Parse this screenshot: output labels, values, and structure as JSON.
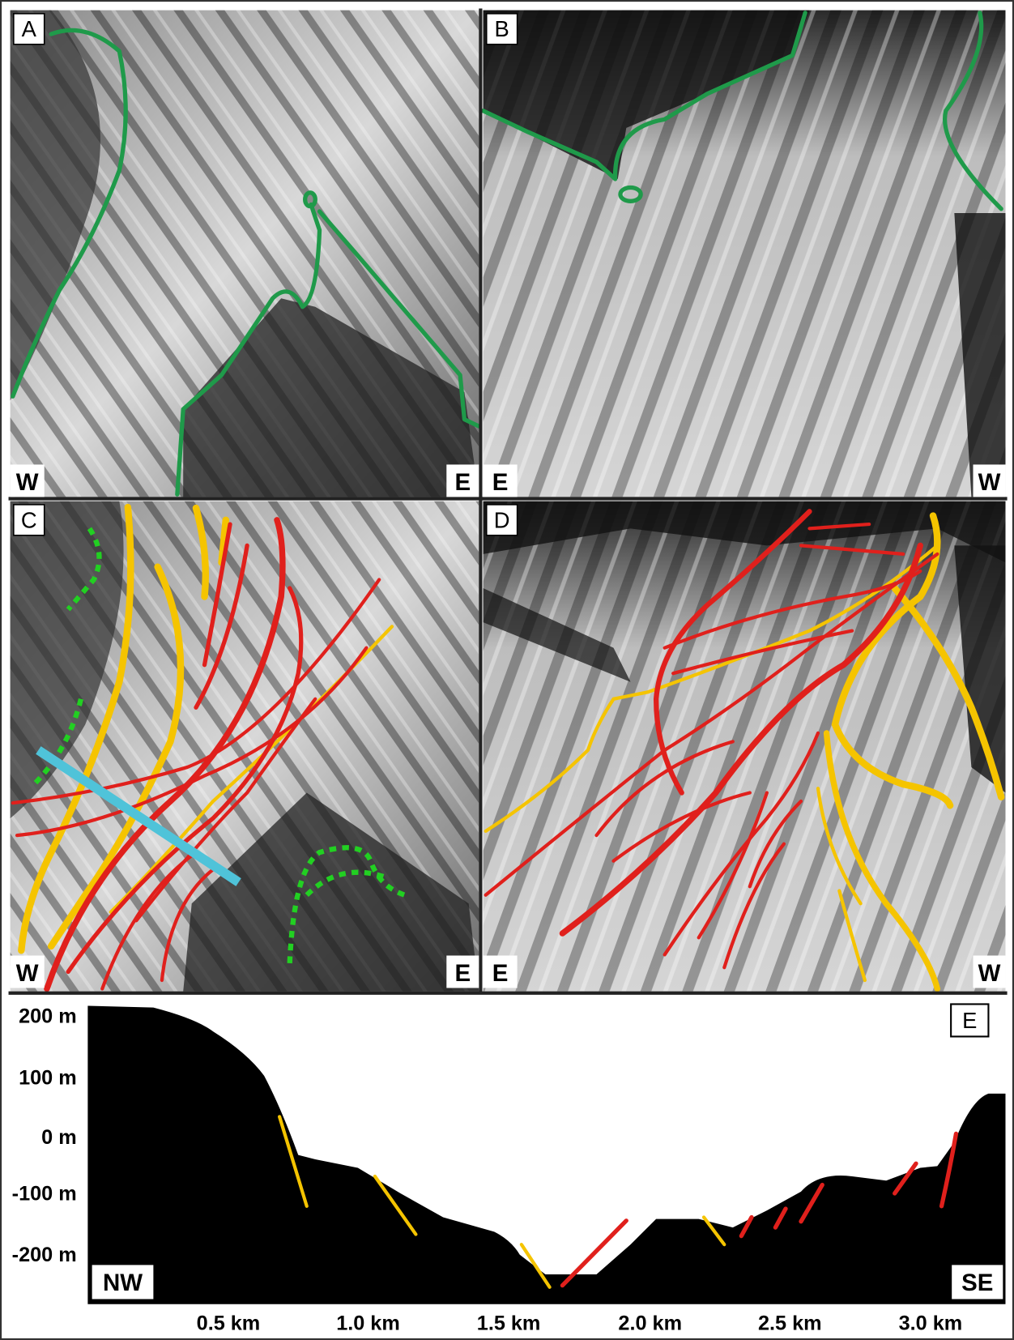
{
  "panels": [
    {
      "label": "A",
      "left": "W",
      "right": "E"
    },
    {
      "label": "B",
      "left": "E",
      "right": "W"
    },
    {
      "label": "C",
      "left": "W",
      "right": "E"
    },
    {
      "label": "D",
      "left": "E",
      "right": "W"
    }
  ],
  "profile": {
    "label": "E",
    "left": "NW",
    "right": "SE",
    "y_ticks": [
      "200 m",
      "100 m",
      "0 m",
      "-100 m",
      "-200 m"
    ],
    "x_ticks": [
      "0.5 km",
      "1.0 km",
      "1.5 km",
      "2.0 km",
      "2.5 km",
      "3.0 km"
    ]
  }
}
